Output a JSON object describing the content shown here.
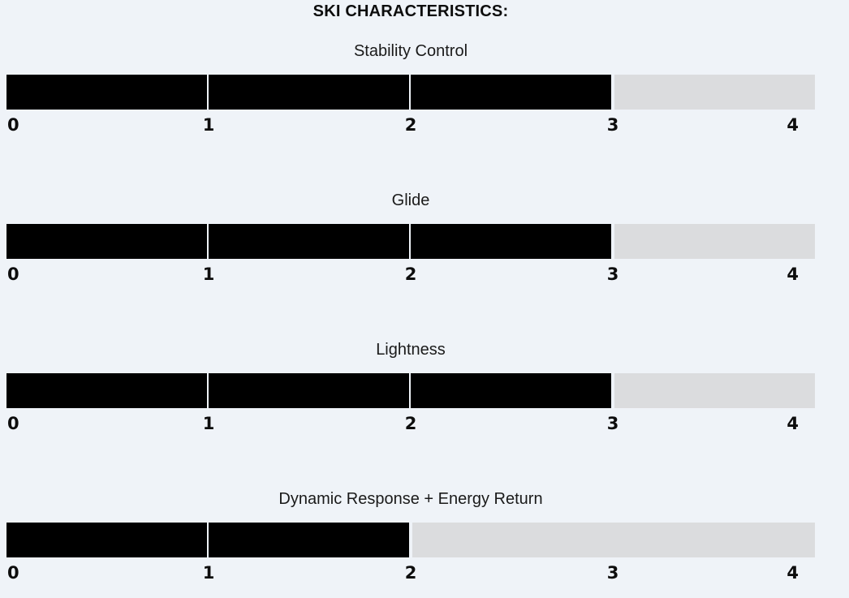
{
  "page": {
    "background_color": "#eff3f8",
    "title": "SKI CHARACTERISTICS:"
  },
  "chart_data": {
    "type": "bar",
    "orientation": "horizontal",
    "title": "SKI CHARACTERISTICS:",
    "categories": [
      "Stability Control",
      "Glide",
      "Lightness",
      "Dynamic Response + Energy Return"
    ],
    "values": [
      3,
      3,
      3,
      2
    ],
    "xlim": [
      0,
      4
    ],
    "tick_labels": [
      "0",
      "1",
      "2",
      "3",
      "4"
    ],
    "grid": false,
    "legend": false,
    "colors": {
      "fill": "#000000",
      "track": "#dbdcde",
      "divider": "#eff3f8",
      "background": "#eff3f8",
      "tick_text": "#0d0d0d",
      "label_text": "#1a1a1a",
      "title_text": "#0d0d0d"
    }
  }
}
